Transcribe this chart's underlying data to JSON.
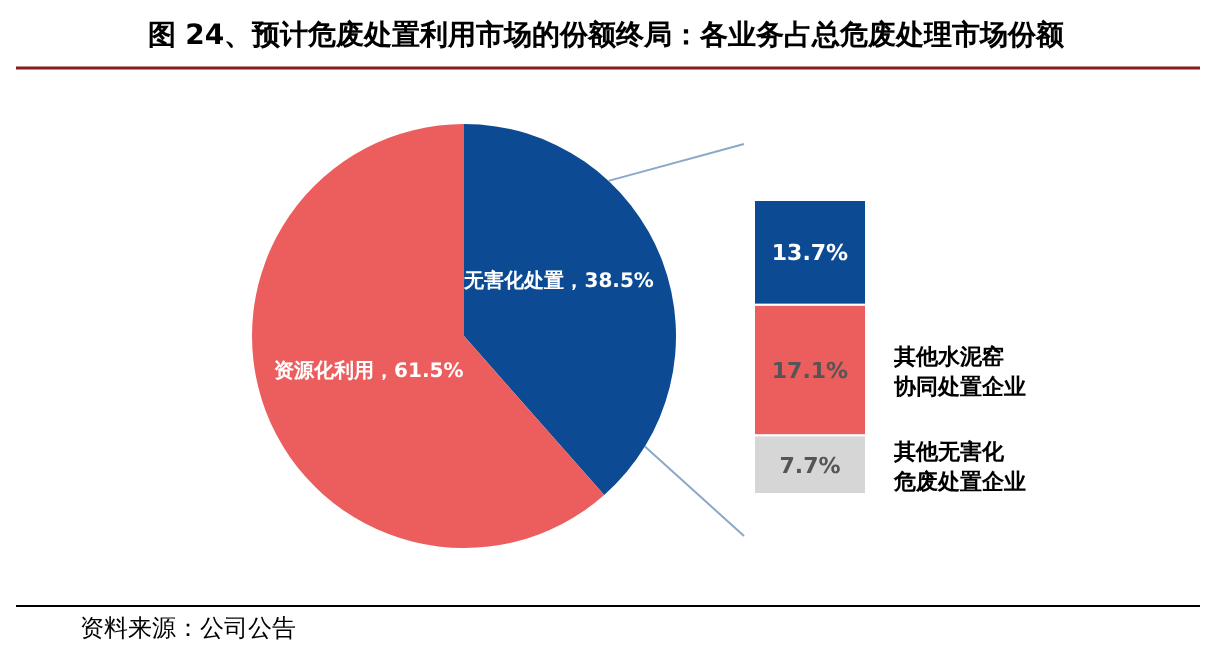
{
  "chart_data": [
    {
      "type": "pie",
      "title": "图 24、预计危废处置利用市场的份额终局：各业务占总危废处理市场份额",
      "categories": [
        "无害化处置",
        "资源化利用"
      ],
      "values": [
        38.5,
        61.5
      ],
      "colors": [
        "#0d4a94",
        "#ec5e5e"
      ],
      "value_labels": [
        "38.5%",
        "61.5%"
      ],
      "annotations": [
        "资料来源：公司公告"
      ]
    },
    {
      "type": "bar",
      "stacked": true,
      "categories": [
        null
      ],
      "series": [
        {
          "name": "其他无害化危废处置企业",
          "color": "#d6d6d6",
          "values": [
            7.7
          ],
          "value_labels": [
            "7.7%"
          ]
        },
        {
          "name": "其他水泥窑协同处置企业",
          "color": "#ec5e5e",
          "values": [
            17.1
          ],
          "value_labels": [
            "17.1%"
          ]
        },
        {
          "color": "#0d4a94",
          "values": [
            13.7
          ],
          "value_labels": [
            "13.7%"
          ]
        }
      ]
    }
  ]
}
